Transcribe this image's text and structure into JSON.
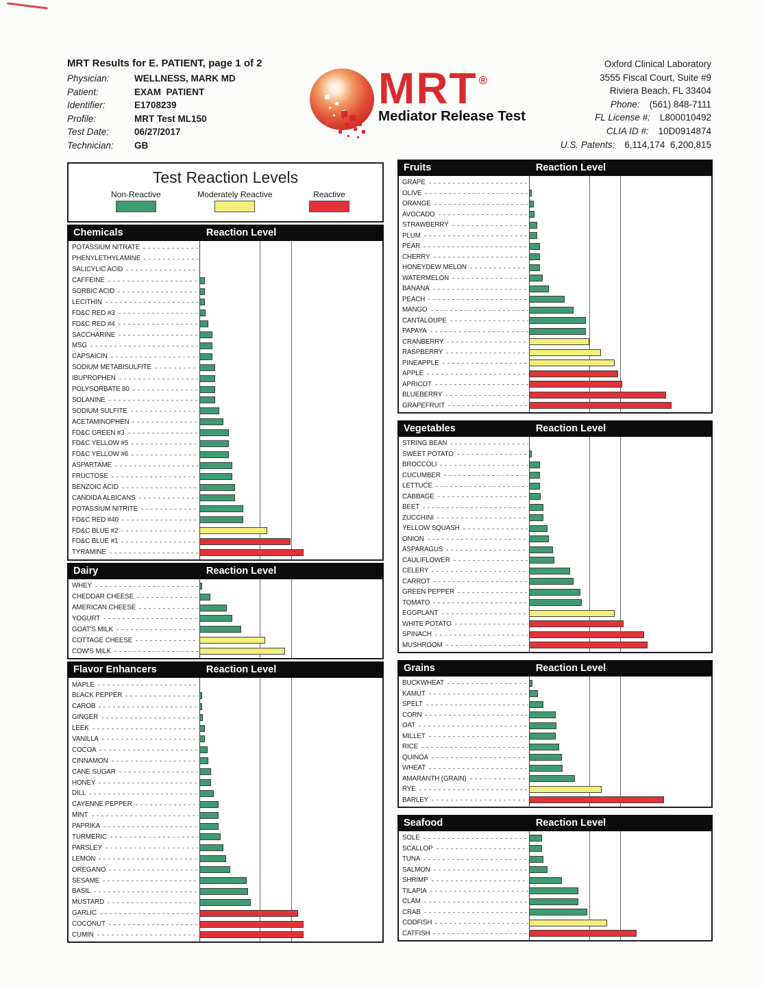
{
  "header": {
    "title": "MRT Results for E. PATIENT, page 1 of 2",
    "patient_rows": [
      {
        "label": "Physician:",
        "value": "WELLNESS, MARK MD"
      },
      {
        "label": "Patient:",
        "value": "EXAM  PATIENT"
      },
      {
        "label": "Identifier:",
        "value": "E1708239"
      },
      {
        "label": "Profile:",
        "value": "MRT Test ML150"
      },
      {
        "label": "Test Date:",
        "value": "06/27/2017"
      },
      {
        "label": "Technician:",
        "value": "GB"
      }
    ],
    "lab_rows": [
      {
        "label": "",
        "value": "Oxford Clinical Laboratory"
      },
      {
        "label": "",
        "value": "3555 Fiscal Court, Suite #9"
      },
      {
        "label": "",
        "value": "Riviera Beach, FL 33404"
      },
      {
        "label": "Phone:",
        "value": "(561) 848-7111"
      },
      {
        "label": "FL License #:",
        "value": "L800010492"
      },
      {
        "label": "CLIA ID #:",
        "value": "10D0914874"
      },
      {
        "label": "U.S. Patents:",
        "value": "6,114,174  6,200,815"
      }
    ]
  },
  "logo": {
    "text": "MRT",
    "registered": "®",
    "subtitle": "Mediator Release Test",
    "color": "#d92b2e"
  },
  "legend": {
    "title": "Test Reaction Levels",
    "items": [
      {
        "label": "Non-Reactive",
        "color": "#3f9b71"
      },
      {
        "label": "Moderately Reactive",
        "color": "#f2ef7b"
      },
      {
        "label": "Reactive",
        "color": "#e23238"
      }
    ]
  },
  "chart_meta": {
    "value_header": "Reaction Level",
    "level_colors": {
      "non": "#3f9b71",
      "mod": "#f2ef7b",
      "reactive": "#e23238"
    },
    "threshold_pct": {
      "moderate": 33,
      "reactive": 50
    },
    "note_units": "bar length as percent of plot width; no numeric axis printed"
  },
  "chart_data": [
    {
      "type": "bar",
      "title": "Chemicals",
      "column": "left",
      "categories": [
        "POTASSIUM NITRATE",
        "PHENYLETHYLAMINE",
        "SALICYLIC ACID",
        "CAFFEINE",
        "SORBIC ACID",
        "LECITHIN",
        "FD&C RED #3",
        "FD&C RED #4",
        "SACCHARINE",
        "MSG",
        "CAPSAICIN",
        "SODIUM METABISULFITE",
        "IBUPROPHEN",
        "POLYSORBATE 80",
        "SOLANINE",
        "SODIUM SULFITE",
        "ACETAMINOPHEN",
        "FD&C GREEN #3",
        "FD&C YELLOW #5",
        "FD&C YELLOW #6",
        "ASPARTAME",
        "FRUCTOSE",
        "BENZOIC ACID",
        "CANDIDA ALBICANS",
        "POTASSIUM NITRITE",
        "FD&C RED #40",
        "FD&C BLUE #2",
        "FD&C BLUE #1",
        "TYRAMINE"
      ],
      "values_pct": [
        0,
        0,
        0,
        3,
        3,
        3,
        3.5,
        5,
        7,
        7,
        7,
        8.5,
        8.5,
        8.5,
        8.5,
        11,
        13,
        16,
        16,
        16,
        18,
        18,
        19.5,
        19.5,
        24,
        24,
        37,
        50,
        57
      ],
      "levels": [
        "non",
        "non",
        "non",
        "non",
        "non",
        "non",
        "non",
        "non",
        "non",
        "non",
        "non",
        "non",
        "non",
        "non",
        "non",
        "non",
        "non",
        "non",
        "non",
        "non",
        "non",
        "non",
        "non",
        "non",
        "non",
        "non",
        "mod",
        "reactive",
        "reactive"
      ]
    },
    {
      "type": "bar",
      "title": "Dairy",
      "column": "left",
      "categories": [
        "WHEY",
        "CHEDDAR CHEESE",
        "AMERICAN CHEESE",
        "YOGURT",
        "GOAT'S MILK",
        "COTTAGE CHEESE",
        "COW'S MILK"
      ],
      "values_pct": [
        1.5,
        6,
        15,
        18,
        23,
        36,
        47
      ],
      "levels": [
        "non",
        "non",
        "non",
        "non",
        "non",
        "mod",
        "mod"
      ]
    },
    {
      "type": "bar",
      "title": "Flavor Enhancers",
      "column": "left",
      "categories": [
        "MAPLE",
        "BLACK PEPPER",
        "CAROB",
        "GINGER",
        "LEEK",
        "VANILLA",
        "COCOA",
        "CINNAMON",
        "CANE SUGAR",
        "HONEY",
        "DILL",
        "CAYENNE PEPPER",
        "MINT",
        "PAPRIKA",
        "TURMERIC",
        "PARSLEY",
        "LEMON",
        "OREGANO",
        "SESAME",
        "BASIL",
        "MUSTARD",
        "GARLIC",
        "COCONUT",
        "CUMIN"
      ],
      "values_pct": [
        0,
        1.5,
        1.5,
        2,
        3,
        3,
        4.5,
        5,
        6.5,
        6.5,
        8,
        10.5,
        10.5,
        10.5,
        11.5,
        13,
        14.5,
        17,
        26,
        26.5,
        28,
        54,
        57,
        57
      ],
      "levels": [
        "non",
        "non",
        "non",
        "non",
        "non",
        "non",
        "non",
        "non",
        "non",
        "non",
        "non",
        "non",
        "non",
        "non",
        "non",
        "non",
        "non",
        "non",
        "non",
        "non",
        "non",
        "reactive",
        "reactive",
        "reactive"
      ]
    },
    {
      "type": "bar",
      "title": "Fruits",
      "column": "right",
      "categories": [
        "GRAPE",
        "OLIVE",
        "ORANGE",
        "AVOCADO",
        "STRAWBERRY",
        "PLUM",
        "PEAR",
        "CHERRY",
        "HONEYDEW MELON",
        "WATERMELON",
        "BANANA",
        "PEACH",
        "MANGO",
        "CANTALOUPE",
        "PAPAYA",
        "CRANBERRY",
        "RASPBERRY",
        "PINEAPPLE",
        "APPLE",
        "APRICOT",
        "BLUEBERRY",
        "GRAPEFRUIT"
      ],
      "values_pct": [
        0,
        1.5,
        2.5,
        3,
        4.5,
        4.5,
        6,
        6,
        6,
        7.5,
        11,
        19.5,
        24.5,
        31,
        31,
        33,
        39.5,
        47,
        49,
        51,
        75,
        78
      ],
      "levels": [
        "non",
        "non",
        "non",
        "non",
        "non",
        "non",
        "non",
        "non",
        "non",
        "non",
        "non",
        "non",
        "non",
        "non",
        "non",
        "mod",
        "mod",
        "mod",
        "reactive",
        "reactive",
        "reactive",
        "reactive"
      ]
    },
    {
      "type": "bar",
      "title": "Vegetables",
      "column": "right",
      "categories": [
        "STRING BEAN",
        "SWEET POTATO",
        "BROCCOLI",
        "CUCUMBER",
        "LETTUCE",
        "CABBAGE",
        "BEET",
        "ZUCCHINI",
        "YELLOW SQUASH",
        "ONION",
        "ASPARAGUS",
        "CAULIFLOWER",
        "CELERY",
        "CARROT",
        "GREEN PEPPER",
        "TOMATO",
        "EGGPLANT",
        "WHITE POTATO",
        "SPINACH",
        "MUSHROOM"
      ],
      "values_pct": [
        0,
        1.5,
        6,
        6,
        6,
        6.5,
        8,
        8,
        10,
        11,
        13,
        14,
        22.5,
        24.5,
        28,
        29,
        47,
        52,
        63,
        65
      ],
      "levels": [
        "non",
        "non",
        "non",
        "non",
        "non",
        "non",
        "non",
        "non",
        "non",
        "non",
        "non",
        "non",
        "non",
        "non",
        "non",
        "non",
        "mod",
        "reactive",
        "reactive",
        "reactive"
      ]
    },
    {
      "type": "bar",
      "title": "Grains",
      "column": "right",
      "categories": [
        "BUCKWHEAT",
        "KAMUT",
        "SPELT",
        "CORN",
        "OAT",
        "MILLET",
        "RICE",
        "QUINOA",
        "WHEAT",
        "AMARANTH (GRAIN)",
        "RYE",
        "BARLEY"
      ],
      "values_pct": [
        2,
        5,
        8,
        14.5,
        15,
        14.5,
        16.5,
        18,
        18.5,
        25,
        40,
        74
      ],
      "levels": [
        "non",
        "non",
        "non",
        "non",
        "non",
        "non",
        "non",
        "non",
        "non",
        "non",
        "mod",
        "reactive"
      ]
    },
    {
      "type": "bar",
      "title": "Seafood",
      "column": "right",
      "categories": [
        "SOLE",
        "SCALLOP",
        "TUNA",
        "SALMON",
        "SHRIMP",
        "TILAPIA",
        "CLAM",
        "CRAB",
        "CODFISH",
        "CATFISH"
      ],
      "values_pct": [
        7,
        7,
        8,
        10,
        18,
        27,
        27,
        32,
        43,
        59
      ],
      "levels": [
        "non",
        "non",
        "non",
        "non",
        "non",
        "non",
        "non",
        "non",
        "mod",
        "reactive"
      ]
    }
  ]
}
